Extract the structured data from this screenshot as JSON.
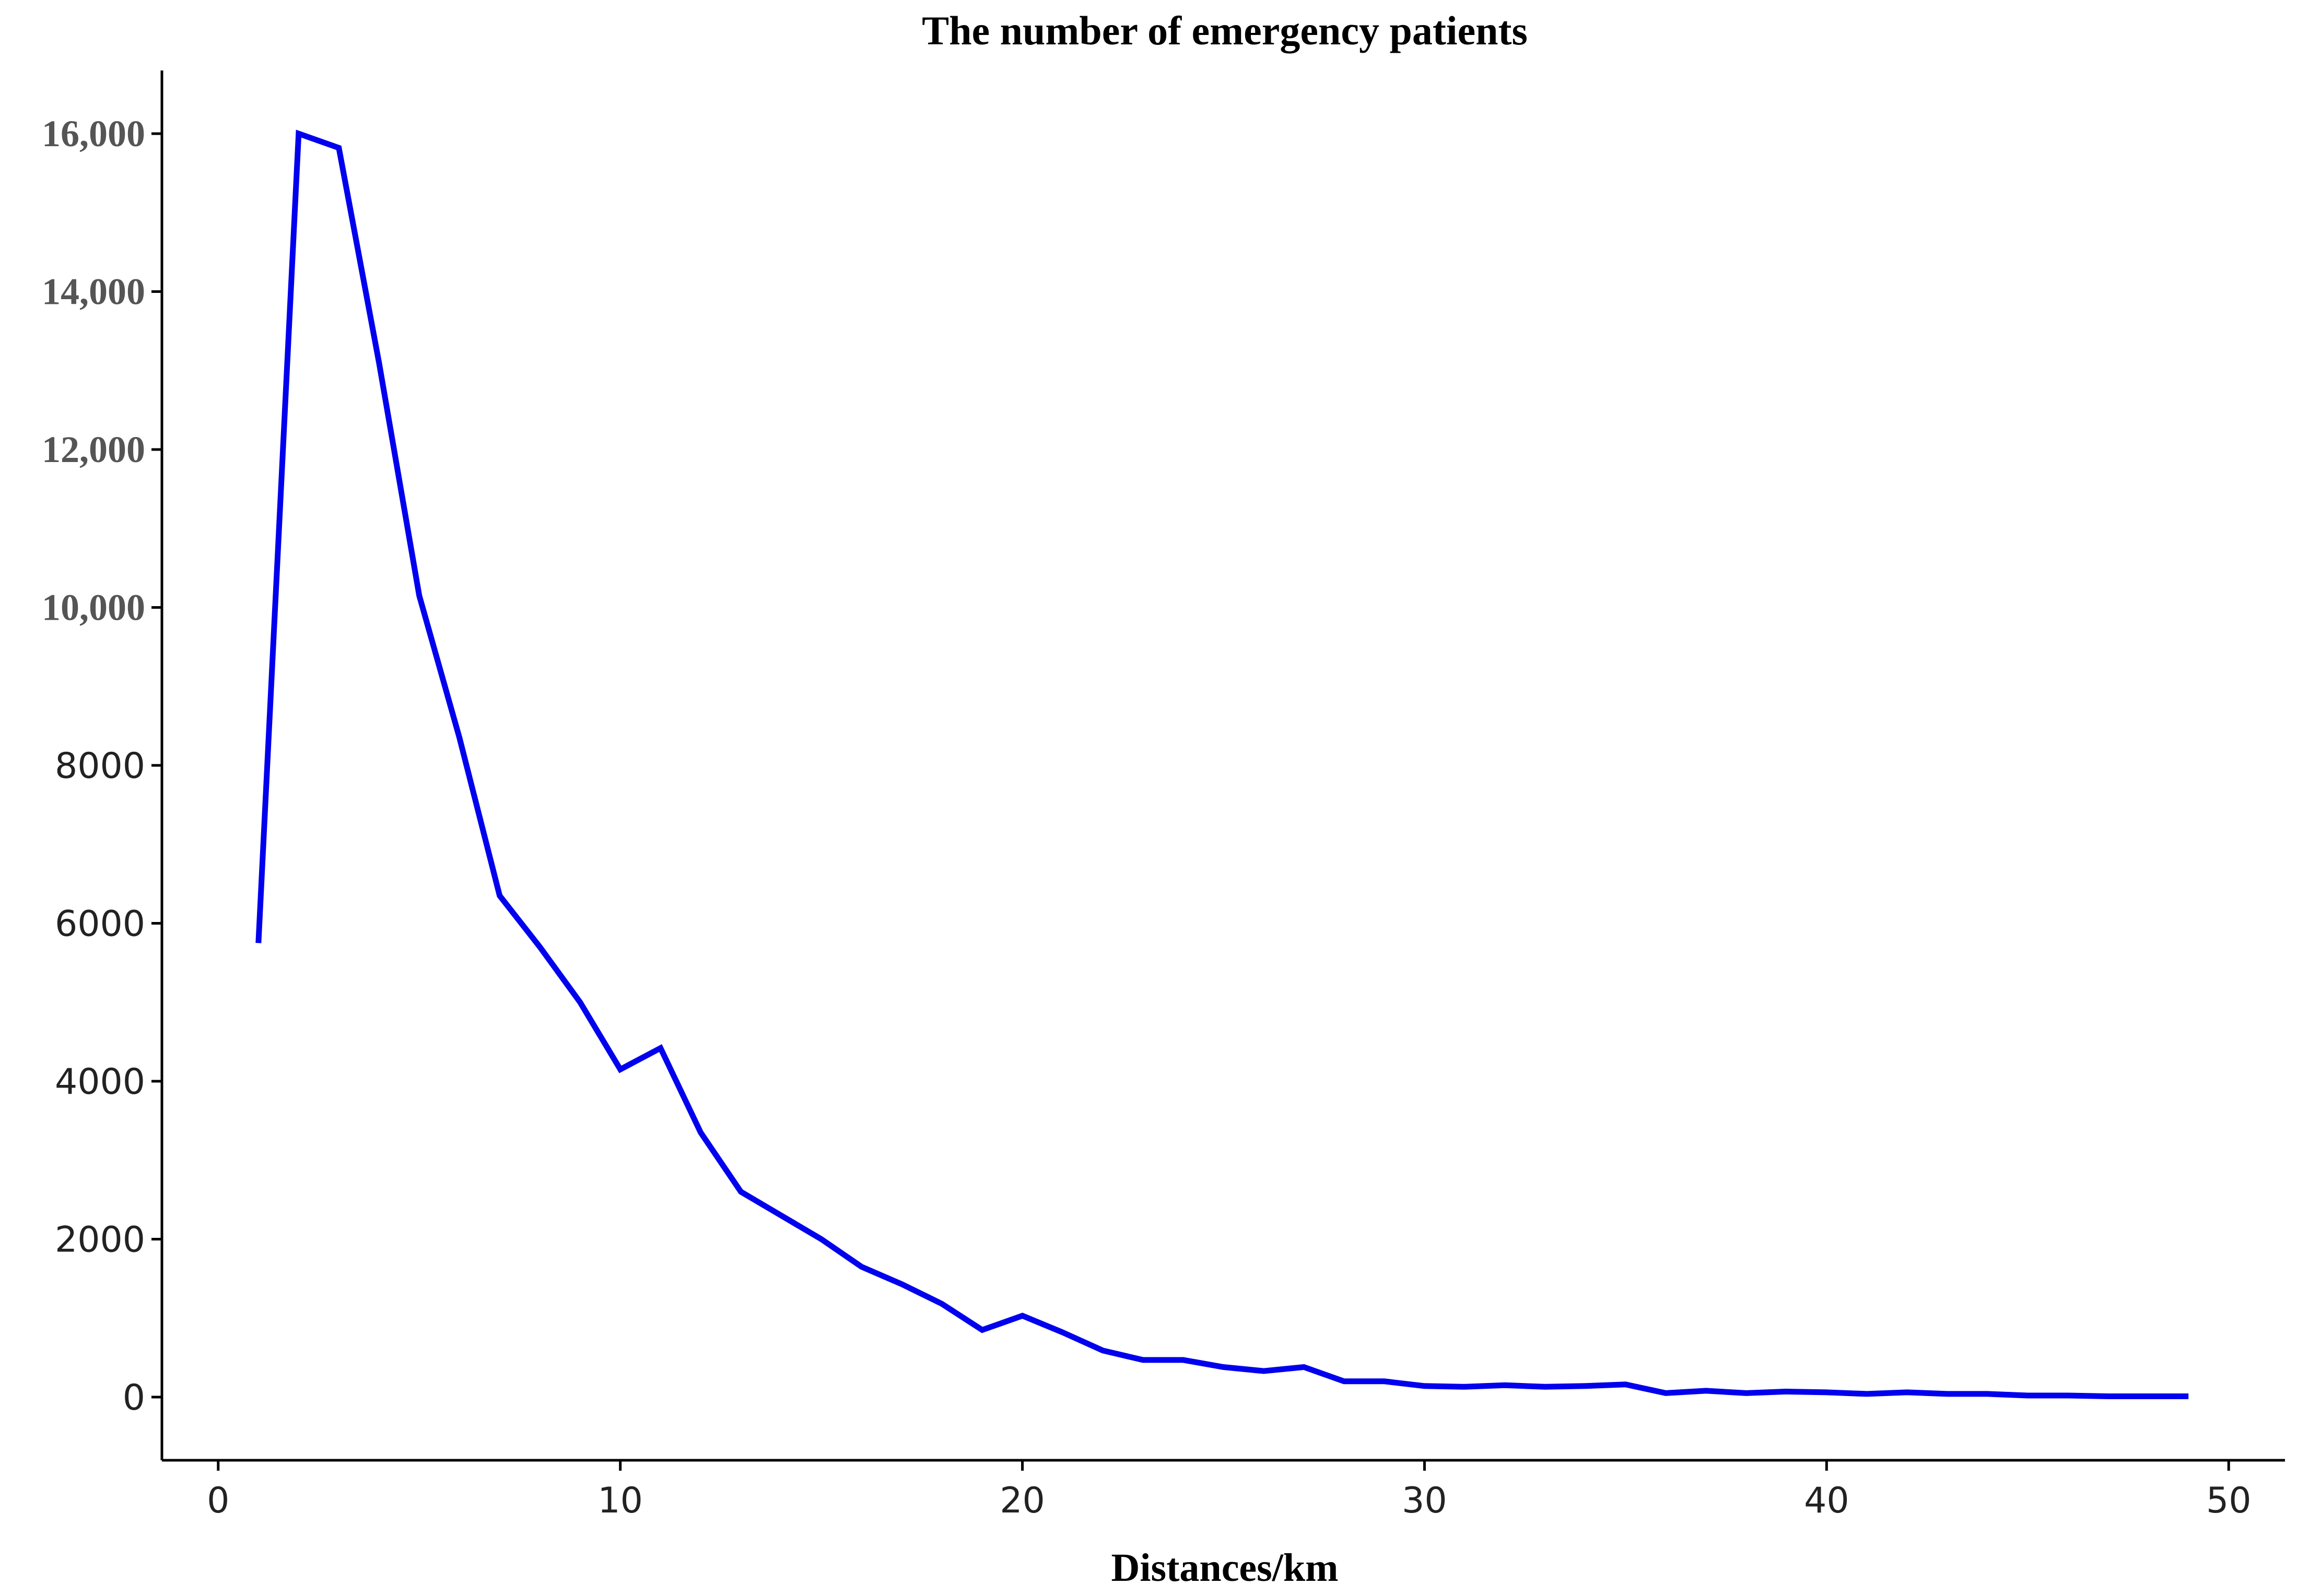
{
  "chart_data": {
    "type": "line",
    "title": "The number of emergency patients",
    "xlabel": "Distances/km",
    "ylabel": "",
    "xlim": [
      -1.4,
      51.4
    ],
    "ylim": [
      -800,
      16800
    ],
    "x_ticks": [
      "0",
      "10",
      "20",
      "30",
      "40",
      "50"
    ],
    "y_ticks": [
      {
        "value": 0,
        "label": "0",
        "style": "sans"
      },
      {
        "value": 2000,
        "label": "2000",
        "style": "sans"
      },
      {
        "value": 4000,
        "label": "4000",
        "style": "sans"
      },
      {
        "value": 6000,
        "label": "6000",
        "style": "sans"
      },
      {
        "value": 8000,
        "label": "8000",
        "style": "sans"
      },
      {
        "value": 10000,
        "label": "10,000",
        "style": "serif"
      },
      {
        "value": 12000,
        "label": "12,000",
        "style": "serif"
      },
      {
        "value": 14000,
        "label": "14,000",
        "style": "serif"
      },
      {
        "value": 16000,
        "label": "16,000",
        "style": "serif"
      }
    ],
    "series_color": "#0000ee",
    "grid": false,
    "series": [
      {
        "x": [
          1,
          2,
          3,
          4,
          5,
          6,
          7,
          8,
          9,
          10,
          11,
          12,
          13,
          14,
          15,
          16,
          17,
          18,
          19,
          20,
          21,
          22,
          23,
          24,
          25,
          26,
          27,
          28,
          29,
          30,
          31,
          32,
          33,
          34,
          35,
          36,
          37,
          38,
          39,
          40,
          41,
          42,
          43,
          44,
          45,
          46,
          47,
          48,
          49
        ],
        "values": [
          5750,
          16000,
          15820,
          13100,
          10150,
          8350,
          6350,
          5700,
          5000,
          4150,
          4420,
          3350,
          2600,
          2300,
          2000,
          1650,
          1430,
          1180,
          850,
          1030,
          820,
          590,
          470,
          470,
          380,
          330,
          380,
          200,
          200,
          140,
          130,
          150,
          130,
          140,
          160,
          50,
          80,
          50,
          70,
          60,
          40,
          60,
          40,
          40,
          20,
          20,
          10,
          10,
          10
        ]
      }
    ]
  }
}
